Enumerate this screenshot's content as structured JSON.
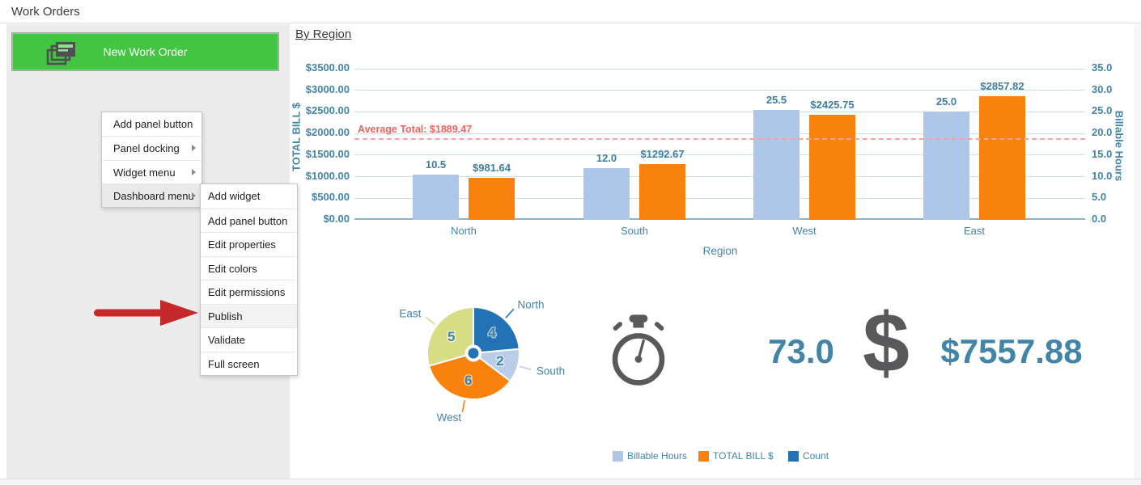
{
  "header": {
    "title": "Work Orders"
  },
  "panel": {
    "new_work_order_button": "New Work Order"
  },
  "context_menu": {
    "items": [
      {
        "label": "Add panel button",
        "has_submenu": false
      },
      {
        "label": "Panel docking",
        "has_submenu": true
      },
      {
        "label": "Widget menu",
        "has_submenu": true
      },
      {
        "label": "Dashboard menu",
        "has_submenu": true,
        "highlighted": true
      }
    ]
  },
  "submenu": {
    "items": [
      "Add widget",
      "Add panel button",
      "Edit properties",
      "Edit colors",
      "Edit permissions",
      "Publish",
      "Validate",
      "Full screen"
    ],
    "highlighted_item": "Publish"
  },
  "colors": {
    "accent_text": "#4384A8",
    "button_green": "#43C543",
    "icon_gray": "#58595B",
    "arrow_red": "#C5292B",
    "gridline": "#C9DFEA",
    "axis_line": "#85B7CC",
    "average_line": "#F5A3A3",
    "average_label": "#F2635D"
  },
  "chart_data": {
    "bar": {
      "type": "bar",
      "title": "By Region",
      "xlabel": "Region",
      "categories": [
        "North",
        "South",
        "West",
        "East"
      ],
      "left_axis": {
        "title": "TOTAL BILL $",
        "min": 0,
        "max": 3500,
        "ticks": [
          "$0.00",
          "$500.00",
          "$1000.00",
          "$1500.00",
          "$2000.00",
          "$2500.00",
          "$3000.00",
          "$3500.00"
        ]
      },
      "right_axis": {
        "title": "Billable Hours",
        "min": 0,
        "max": 35,
        "ticks": [
          "0.0",
          "5.0",
          "10.0",
          "15.0",
          "20.0",
          "25.0",
          "30.0",
          "35.0"
        ]
      },
      "series": [
        {
          "name": "Billable Hours",
          "axis": "right",
          "color": "#AEC6E8",
          "values": [
            10.5,
            12.0,
            25.5,
            25.0
          ],
          "labels": [
            "10.5",
            "12.0",
            "25.5",
            "25.0"
          ]
        },
        {
          "name": "TOTAL BILL $",
          "axis": "left",
          "color": "#F8820D",
          "values": [
            981.64,
            1292.67,
            2425.75,
            2857.82
          ],
          "labels": [
            "$981.64",
            "$1292.67",
            "$2425.75",
            "$2857.82"
          ]
        }
      ],
      "average_line": {
        "label": "Average Total: $1889.47",
        "value": 1889.47
      },
      "grid": true,
      "legend_position": "bottom"
    },
    "pie": {
      "type": "pie",
      "slices": [
        {
          "label": "North",
          "value": 4,
          "color": "#2272B5"
        },
        {
          "label": "South",
          "value": 2,
          "color": "#B9CCE8"
        },
        {
          "label": "West",
          "value": 6,
          "color": "#F8820D"
        },
        {
          "label": "East",
          "value": 5,
          "color": "#D6DD85"
        }
      ]
    },
    "kpis": [
      {
        "icon": "stopwatch-icon",
        "value": "73.0"
      },
      {
        "icon": "dollar-icon",
        "icon_glyph": "$",
        "value": "$7557.88"
      }
    ],
    "legend": [
      {
        "label": "Billable Hours",
        "color": "#AEC6E8"
      },
      {
        "label": "TOTAL BILL $",
        "color": "#F8820D"
      },
      {
        "label": "Count",
        "color": "#2272B5"
      }
    ]
  }
}
